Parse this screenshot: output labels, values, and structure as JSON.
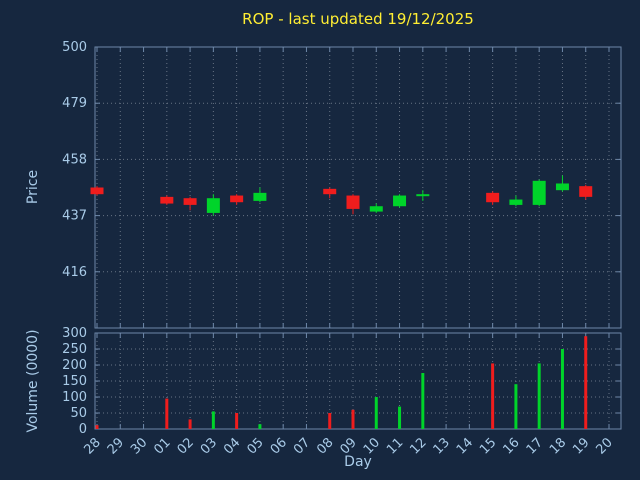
{
  "chart_data": {
    "type": "candlestick+volume",
    "title": "ROP - last updated 19/12/2025",
    "xlabel": "Day",
    "grid": "dotted",
    "price_axis": {
      "label": "Price",
      "min": 395,
      "max": 500,
      "ticks": [
        416,
        437,
        458,
        479,
        500
      ]
    },
    "volume_axis": {
      "label": "Volume (0000)",
      "min": 0,
      "max": 300,
      "ticks": [
        0,
        50,
        100,
        150,
        200,
        250,
        300
      ]
    },
    "categories": [
      "28",
      "29",
      "30",
      "01",
      "02",
      "03",
      "04",
      "05",
      "06",
      "07",
      "08",
      "09",
      "10",
      "11",
      "12",
      "13",
      "14",
      "15",
      "16",
      "17",
      "18",
      "19",
      "20"
    ],
    "candles": [
      {
        "day": "28",
        "open": 447.5,
        "high": 448,
        "low": 444.5,
        "close": 445
      },
      {
        "day": "01",
        "open": 444,
        "high": 444.5,
        "low": 441,
        "close": 441.5
      },
      {
        "day": "02",
        "open": 443.5,
        "high": 444,
        "low": 439,
        "close": 441
      },
      {
        "day": "03",
        "open": 438,
        "high": 445,
        "low": 437,
        "close": 443.5
      },
      {
        "day": "04",
        "open": 444.5,
        "high": 445,
        "low": 441,
        "close": 442
      },
      {
        "day": "05",
        "open": 442.5,
        "high": 447.5,
        "low": 442,
        "close": 445.5
      },
      {
        "day": "08",
        "open": 447,
        "high": 447.5,
        "low": 443.5,
        "close": 445
      },
      {
        "day": "09",
        "open": 444.5,
        "high": 445,
        "low": 437.5,
        "close": 439.5
      },
      {
        "day": "10",
        "open": 438.5,
        "high": 441.5,
        "low": 438,
        "close": 440.5
      },
      {
        "day": "11",
        "open": 440.5,
        "high": 445,
        "low": 440,
        "close": 444.5
      },
      {
        "day": "12",
        "open": 444.5,
        "high": 446.5,
        "low": 442.5,
        "close": 445
      },
      {
        "day": "15",
        "open": 445.5,
        "high": 446,
        "low": 441,
        "close": 442
      },
      {
        "day": "16",
        "open": 441,
        "high": 444.5,
        "low": 440.5,
        "close": 443
      },
      {
        "day": "17",
        "open": 441,
        "high": 450.5,
        "low": 440.5,
        "close": 450
      },
      {
        "day": "18",
        "open": 446.5,
        "high": 452,
        "low": 446,
        "close": 449
      },
      {
        "day": "19",
        "open": 448,
        "high": 448.5,
        "low": 443,
        "close": 444
      }
    ],
    "volumes": [
      {
        "day": "28",
        "value": 12
      },
      {
        "day": "01",
        "value": 95
      },
      {
        "day": "02",
        "value": 30
      },
      {
        "day": "03",
        "value": 55
      },
      {
        "day": "04",
        "value": 50
      },
      {
        "day": "05",
        "value": 15
      },
      {
        "day": "08",
        "value": 50
      },
      {
        "day": "09",
        "value": 60
      },
      {
        "day": "10",
        "value": 100
      },
      {
        "day": "11",
        "value": 70
      },
      {
        "day": "12",
        "value": 175
      },
      {
        "day": "15",
        "value": 205
      },
      {
        "day": "16",
        "value": 140
      },
      {
        "day": "17",
        "value": 205
      },
      {
        "day": "18",
        "value": 250
      },
      {
        "day": "19",
        "value": 290
      }
    ],
    "colors": {
      "up": "#00d42a",
      "down": "#f01d1d",
      "grid": "#b8bec8",
      "border": "#6d87a8",
      "tick_text": "#a9cbe8",
      "title": "#ffee33",
      "background": "#16273f"
    }
  }
}
